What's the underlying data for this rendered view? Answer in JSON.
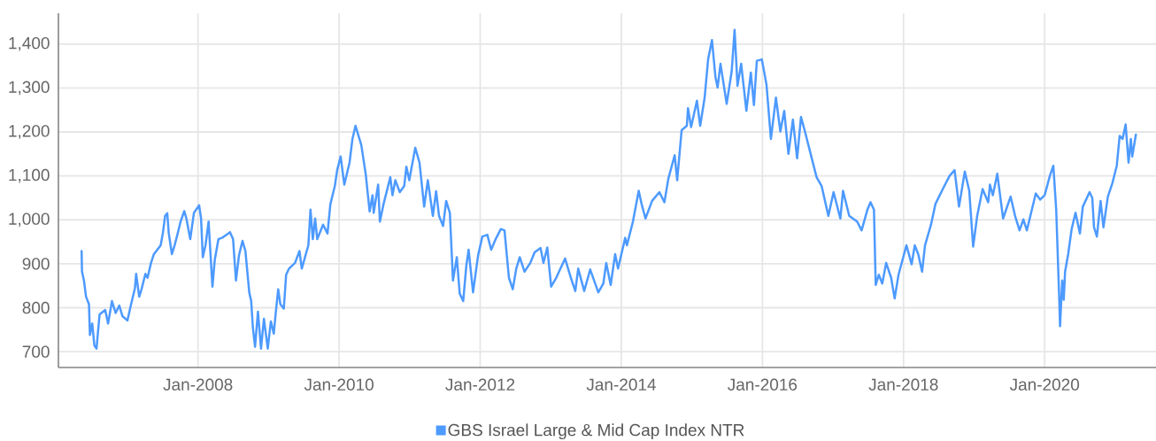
{
  "chart_data": {
    "type": "line",
    "x": [
      "2006-05-09",
      "2006-05-11",
      "2006-05-21",
      "2006-06-01",
      "2006-06-16",
      "2006-06-21",
      "2006-07-03",
      "2006-07-14",
      "2006-07-25",
      "2006-08-10",
      "2006-09-08",
      "2006-09-23",
      "2006-10-13",
      "2006-11-01",
      "2006-11-20",
      "2006-12-06",
      "2007-01-01",
      "2007-01-20",
      "2007-02-09",
      "2007-02-15",
      "2007-03-03",
      "2007-03-15",
      "2007-04-04",
      "2007-04-15",
      "2007-05-03",
      "2007-05-18",
      "2007-06-22",
      "2007-07-03",
      "2007-07-15",
      "2007-07-26",
      "2007-08-03",
      "2007-08-19",
      "2007-09-02",
      "2007-09-14",
      "2007-10-03",
      "2007-10-22",
      "2007-11-02",
      "2007-11-22",
      "2007-12-11",
      "2008-01-07",
      "2008-01-17",
      "2008-01-26",
      "2008-02-09",
      "2008-02-25",
      "2008-03-16",
      "2008-03-28",
      "2008-04-16",
      "2008-05-09",
      "2008-06-15",
      "2008-07-01",
      "2008-07-16",
      "2008-08-01",
      "2008-08-19",
      "2008-09-03",
      "2008-09-23",
      "2008-10-03",
      "2008-10-12",
      "2008-10-23",
      "2008-11-07",
      "2008-11-23",
      "2008-12-08",
      "2008-12-28",
      "2009-01-13",
      "2009-01-28",
      "2009-02-08",
      "2009-02-20",
      "2009-03-03",
      "2009-03-21",
      "2009-04-02",
      "2009-04-17",
      "2009-05-18",
      "2009-06-10",
      "2009-06-22",
      "2009-07-26",
      "2009-08-06",
      "2009-08-18",
      "2009-08-30",
      "2009-09-10",
      "2009-10-10",
      "2009-11-02",
      "2009-11-17",
      "2009-12-10",
      "2009-12-22",
      "2010-01-09",
      "2010-01-28",
      "2010-02-24",
      "2010-03-11",
      "2010-03-27",
      "2010-04-26",
      "2010-05-19",
      "2010-06-08",
      "2010-06-23",
      "2010-06-29",
      "2010-07-22",
      "2010-07-31",
      "2010-08-19",
      "2010-09-23",
      "2010-10-04",
      "2010-10-19",
      "2010-11-11",
      "2010-12-04",
      "2010-12-15",
      "2010-12-30",
      "2011-01-30",
      "2011-02-21",
      "2011-03-17",
      "2011-04-05",
      "2011-05-01",
      "2011-05-18",
      "2011-06-02",
      "2011-06-23",
      "2011-07-09",
      "2011-07-28",
      "2011-08-13",
      "2011-09-02",
      "2011-09-17",
      "2011-10-05",
      "2011-10-21",
      "2011-11-02",
      "2011-11-25",
      "2011-12-21",
      "2012-01-12",
      "2012-02-07",
      "2012-02-27",
      "2012-03-21",
      "2012-04-17",
      "2012-05-06",
      "2012-05-29",
      "2012-06-18",
      "2012-07-06",
      "2012-07-24",
      "2012-08-18",
      "2012-09-17",
      "2012-10-09",
      "2012-11-09",
      "2012-11-24",
      "2012-12-14",
      "2013-01-03",
      "2013-01-29",
      "2013-03-16",
      "2013-04-15",
      "2013-05-08",
      "2013-05-23",
      "2013-06-23",
      "2013-07-24",
      "2013-09-04",
      "2013-09-30",
      "2013-10-15",
      "2013-11-07",
      "2013-11-30",
      "2013-12-15",
      "2014-01-21",
      "2014-01-30",
      "2014-03-02",
      "2014-04-01",
      "2014-04-16",
      "2014-05-06",
      "2014-06-09",
      "2014-07-17",
      "2014-08-12",
      "2014-09-01",
      "2014-10-04",
      "2014-10-17",
      "2014-11-09",
      "2014-12-06",
      "2014-12-12",
      "2014-12-28",
      "2015-01-27",
      "2015-02-13",
      "2015-03-08",
      "2015-03-26",
      "2015-04-15",
      "2015-05-03",
      "2015-05-14",
      "2015-05-29",
      "2015-06-30",
      "2015-07-26",
      "2015-08-10",
      "2015-08-25",
      "2015-09-13",
      "2015-10-10",
      "2015-11-02",
      "2015-11-18",
      "2015-12-03",
      "2015-12-29",
      "2016-01-22",
      "2016-02-14",
      "2016-03-11",
      "2016-04-03",
      "2016-04-23",
      "2016-05-15",
      "2016-06-07",
      "2016-06-29",
      "2016-07-19",
      "2016-08-11",
      "2016-09-03",
      "2016-10-08",
      "2016-11-03",
      "2016-12-08",
      "2017-01-04",
      "2017-02-08",
      "2017-02-22",
      "2017-03-26",
      "2017-05-06",
      "2017-05-29",
      "2017-06-28",
      "2017-07-14",
      "2017-08-01",
      "2017-08-10",
      "2017-08-26",
      "2017-09-13",
      "2017-10-03",
      "2017-10-29",
      "2017-11-16",
      "2017-12-06",
      "2018-01-16",
      "2018-02-12",
      "2018-02-28",
      "2018-03-18",
      "2018-04-07",
      "2018-04-22",
      "2018-05-23",
      "2018-06-15",
      "2018-07-23",
      "2018-08-27",
      "2018-09-22",
      "2018-10-15",
      "2018-11-14",
      "2018-12-07",
      "2018-12-27",
      "2019-01-17",
      "2019-02-14",
      "2019-03-15",
      "2019-03-24",
      "2019-04-08",
      "2019-05-01",
      "2019-05-31",
      "2019-07-09",
      "2019-08-01",
      "2019-08-24",
      "2019-09-13",
      "2019-10-01",
      "2019-11-16",
      "2019-12-09",
      "2020-01-01",
      "2020-01-28",
      "2020-02-15",
      "2020-03-01",
      "2020-03-17",
      "2020-03-21",
      "2020-04-01",
      "2020-04-09",
      "2020-04-16",
      "2020-05-02",
      "2020-05-20",
      "2020-06-09",
      "2020-07-02",
      "2020-07-17",
      "2020-08-21",
      "2020-09-04",
      "2020-09-13",
      "2020-09-28",
      "2020-10-17",
      "2020-11-01",
      "2020-11-24",
      "2020-12-17",
      "2021-01-09",
      "2021-01-24",
      "2021-02-08",
      "2021-02-24",
      "2021-03-11",
      "2021-03-23",
      "2021-03-30",
      "2021-04-18"
    ],
    "series": [
      {
        "name": "GBS Israel Large & Mid Cap Index NTR",
        "color": "#4d9aff",
        "values": [
          929,
          882,
          862,
          825,
          808,
          738,
          764,
          714,
          707,
          785,
          795,
          764,
          815,
          788,
          805,
          781,
          771,
          808,
          845,
          877,
          825,
          842,
          877,
          868,
          902,
          922,
          942,
          969,
          1009,
          1015,
          969,
          922,
          942,
          962,
          996,
          1020,
          1003,
          956,
          1016,
          1033,
          1003,
          915,
          942,
          996,
          848,
          909,
          956,
          960,
          972,
          956,
          862,
          920,
          952,
          929,
          835,
          815,
          754,
          711,
          791,
          707,
          775,
          707,
          769,
          741,
          791,
          842,
          808,
          798,
          875,
          889,
          902,
          929,
          889,
          942,
          1023,
          956,
          1003,
          956,
          989,
          969,
          1036,
          1077,
          1113,
          1144,
          1080,
          1130,
          1184,
          1214,
          1170,
          1103,
          1019,
          1056,
          1016,
          1080,
          996,
          1036,
          1097,
          1056,
          1090,
          1063,
          1077,
          1121,
          1090,
          1164,
          1130,
          1030,
          1090,
          1009,
          1065,
          1009,
          986,
          1043,
          1016,
          862,
          915,
          832,
          815,
          895,
          932,
          835,
          919,
          962,
          966,
          932,
          956,
          979,
          976,
          868,
          842,
          889,
          915,
          882,
          902,
          926,
          936,
          902,
          937,
          848,
          868,
          912,
          868,
          838,
          889,
          838,
          887,
          835,
          855,
          902,
          852,
          922,
          889,
          959,
          942,
          996,
          1066,
          1036,
          1003,
          1043,
          1063,
          1040,
          1093,
          1147,
          1090,
          1204,
          1214,
          1254,
          1211,
          1271,
          1214,
          1278,
          1365,
          1409,
          1325,
          1301,
          1355,
          1264,
          1338,
          1432,
          1305,
          1355,
          1248,
          1335,
          1261,
          1362,
          1365,
          1308,
          1184,
          1278,
          1201,
          1248,
          1150,
          1228,
          1140,
          1234,
          1197,
          1157,
          1097,
          1077,
          1009,
          1063,
          1003,
          1066,
          1009,
          996,
          976,
          1023,
          1040,
          1023,
          852,
          875,
          855,
          902,
          868,
          821,
          875,
          942,
          899,
          942,
          922,
          882,
          942,
          989,
          1036,
          1070,
          1100,
          1113,
          1030,
          1110,
          1066,
          939,
          1009,
          1070,
          1040,
          1080,
          1056,
          1105,
          1003,
          1053,
          1009,
          976,
          1001,
          976,
          1060,
          1046,
          1056,
          1100,
          1123,
          1023,
          815,
          758,
          862,
          818,
          882,
          922,
          979,
          1016,
          969,
          1030,
          1063,
          1050,
          983,
          962,
          1043,
          983,
          1053,
          1083,
          1123,
          1191,
          1184,
          1217,
          1130,
          1184,
          1144,
          1194
        ]
      }
    ],
    "xlim": [
      "2006-01-09",
      "2021-07-31"
    ],
    "xticks": [
      {
        "value": "2008-01-01",
        "label": "Jan-2008"
      },
      {
        "value": "2010-01-01",
        "label": "Jan-2010"
      },
      {
        "value": "2012-01-01",
        "label": "Jan-2012"
      },
      {
        "value": "2014-01-01",
        "label": "Jan-2014"
      },
      {
        "value": "2016-01-01",
        "label": "Jan-2016"
      },
      {
        "value": "2018-01-01",
        "label": "Jan-2018"
      },
      {
        "value": "2020-01-01",
        "label": "Jan-2020"
      }
    ],
    "ylim": [
      664,
      1470
    ],
    "yticks": [
      700,
      800,
      900,
      {
        "value": 1000,
        "label": "1,000"
      },
      {
        "value": 1100,
        "label": "1,100"
      },
      {
        "value": 1200,
        "label": "1,200"
      },
      {
        "value": 1300,
        "label": "1,300"
      },
      {
        "value": 1400,
        "label": "1,400"
      }
    ],
    "grid": true,
    "legend": "bottom",
    "line_style": "solid"
  }
}
